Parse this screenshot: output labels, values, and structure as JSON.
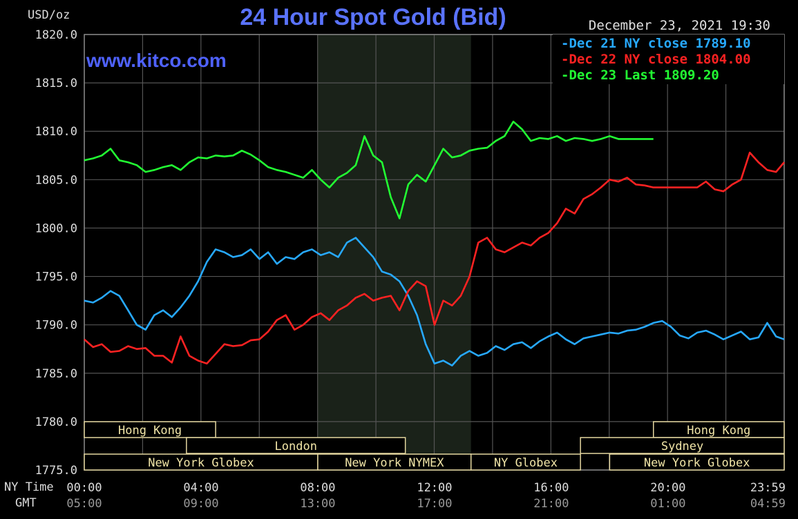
{
  "header": {
    "unit_label": "USD/oz",
    "title": "24 Hour Spot Gold (Bid)",
    "site": "www.kitco.com",
    "date": "December 23, 2021 19:30"
  },
  "legend": [
    "Dec 21 NY close 1789.10",
    "Dec 22 NY close 1804.00",
    "Dec 23 Last 1809.20"
  ],
  "x_axis": {
    "ny_time_label": "NY Time",
    "gmt_label": "GMT",
    "ny_ticks": [
      "00:00",
      "04:00",
      "08:00",
      "12:00",
      "16:00",
      "20:00",
      "23:59"
    ],
    "gmt_ticks": [
      "05:00",
      "09:00",
      "13:00",
      "17:00",
      "21:00",
      "01:00",
      "04:59"
    ]
  },
  "sessions": [
    {
      "label": "Hong Kong",
      "row": 0,
      "start": 0.0,
      "end": 4.5
    },
    {
      "label": "Hong Kong",
      "row": 0,
      "start": 19.5,
      "end": 23.98
    },
    {
      "label": "London",
      "row": 1,
      "start": 3.5,
      "end": 11.0
    },
    {
      "label": "Sydney",
      "row": 1,
      "start": 17.0,
      "end": 23.98
    },
    {
      "label": "New York Globex",
      "row": 2,
      "start": 0.0,
      "end": 8.0
    },
    {
      "label": "New York NYMEX",
      "row": 2,
      "start": 8.0,
      "end": 13.25
    },
    {
      "label": "NY Globex",
      "row": 2,
      "start": 13.25,
      "end": 17.0
    },
    {
      "label": "New York Globex",
      "row": 2,
      "start": 18.0,
      "end": 23.98
    }
  ],
  "chart_data": {
    "type": "line",
    "title": "24 Hour Spot Gold (Bid)",
    "ylabel": "USD/oz",
    "xlabel": "NY Time",
    "ylim": [
      1775.0,
      1820.0
    ],
    "xlim": [
      0,
      23.98
    ],
    "y_ticks": [
      "1775.0",
      "1780.0",
      "1785.0",
      "1790.0",
      "1795.0",
      "1800.0",
      "1805.0",
      "1810.0",
      "1815.0",
      "1820.0"
    ],
    "shaded_region": [
      8.0,
      13.25
    ],
    "grid": true,
    "legend_position": "top-right",
    "colors": {
      "Dec 21": "#27a9ff",
      "Dec 22": "#ff2222",
      "Dec 23": "#22ff33"
    },
    "series": [
      {
        "name": "Dec 21 NY close 1789.10",
        "x": [
          0.0,
          0.3,
          0.6,
          0.9,
          1.2,
          1.5,
          1.8,
          2.1,
          2.4,
          2.7,
          3.0,
          3.3,
          3.6,
          3.9,
          4.2,
          4.5,
          4.8,
          5.1,
          5.4,
          5.7,
          6.0,
          6.3,
          6.6,
          6.9,
          7.2,
          7.5,
          7.8,
          8.1,
          8.4,
          8.7,
          9.0,
          9.3,
          9.6,
          9.9,
          10.2,
          10.5,
          10.8,
          11.1,
          11.4,
          11.7,
          12.0,
          12.3,
          12.6,
          12.9,
          13.2,
          13.5,
          13.8,
          14.1,
          14.4,
          14.7,
          15.0,
          15.3,
          15.6,
          15.9,
          16.2,
          16.5,
          16.8,
          17.1,
          17.4,
          17.7,
          18.0,
          18.3,
          18.6,
          18.9,
          19.2,
          19.5,
          19.8,
          20.1,
          20.4,
          20.7,
          21.0,
          21.3,
          21.6,
          21.9,
          22.2,
          22.5,
          22.8,
          23.1,
          23.4,
          23.7,
          23.98
        ],
        "y": [
          1792.5,
          1792.3,
          1792.8,
          1793.5,
          1793.0,
          1791.5,
          1790.0,
          1789.5,
          1791.0,
          1791.5,
          1790.8,
          1791.8,
          1793.0,
          1794.5,
          1796.5,
          1797.8,
          1797.5,
          1797.0,
          1797.2,
          1797.8,
          1796.8,
          1797.5,
          1796.3,
          1797.0,
          1796.8,
          1797.5,
          1797.8,
          1797.2,
          1797.5,
          1797.0,
          1798.5,
          1799.0,
          1798.0,
          1797.0,
          1795.5,
          1795.2,
          1794.5,
          1793.0,
          1791.0,
          1788.0,
          1786.0,
          1786.3,
          1785.8,
          1786.8,
          1787.3,
          1786.8,
          1787.1,
          1787.8,
          1787.4,
          1788.0,
          1788.2,
          1787.6,
          1788.3,
          1788.8,
          1789.2,
          1788.5,
          1788.0,
          1788.6,
          1788.8,
          1789.0,
          1789.2,
          1789.1,
          1789.4,
          1789.5,
          1789.8,
          1790.2,
          1790.4,
          1789.8,
          1788.9,
          1788.6,
          1789.2,
          1789.4,
          1789.0,
          1788.5,
          1788.9,
          1789.3,
          1788.5,
          1788.7,
          1790.2,
          1788.8,
          1788.5
        ]
      },
      {
        "name": "Dec 22 NY close 1804.00",
        "x": [
          0.0,
          0.3,
          0.6,
          0.9,
          1.2,
          1.5,
          1.8,
          2.1,
          2.4,
          2.7,
          3.0,
          3.3,
          3.6,
          3.9,
          4.2,
          4.5,
          4.8,
          5.1,
          5.4,
          5.7,
          6.0,
          6.3,
          6.6,
          6.9,
          7.2,
          7.5,
          7.8,
          8.1,
          8.4,
          8.7,
          9.0,
          9.3,
          9.6,
          9.9,
          10.2,
          10.5,
          10.8,
          11.1,
          11.4,
          11.7,
          12.0,
          12.3,
          12.6,
          12.9,
          13.2,
          13.5,
          13.8,
          14.1,
          14.4,
          14.7,
          15.0,
          15.3,
          15.6,
          15.9,
          16.2,
          16.5,
          16.8,
          17.1,
          17.4,
          17.7,
          18.0,
          18.3,
          18.6,
          18.9,
          19.2,
          19.5,
          19.8,
          20.1,
          20.4,
          20.7,
          21.0,
          21.3,
          21.6,
          21.9,
          22.2,
          22.5,
          22.8,
          23.1,
          23.4,
          23.7,
          23.98
        ],
        "y": [
          1788.5,
          1787.7,
          1788.0,
          1787.2,
          1787.3,
          1787.8,
          1787.5,
          1787.6,
          1786.8,
          1786.8,
          1786.1,
          1788.8,
          1786.8,
          1786.3,
          1786.0,
          1787.0,
          1788.0,
          1787.8,
          1787.9,
          1788.4,
          1788.5,
          1789.3,
          1790.5,
          1791.0,
          1789.5,
          1790.0,
          1790.8,
          1791.2,
          1790.5,
          1791.5,
          1792.0,
          1792.8,
          1793.2,
          1792.5,
          1792.8,
          1793.0,
          1791.5,
          1793.5,
          1794.5,
          1794.0,
          1790.0,
          1792.5,
          1792.0,
          1793.0,
          1795.0,
          1798.5,
          1799.0,
          1797.8,
          1797.5,
          1798.0,
          1798.5,
          1798.2,
          1799.0,
          1799.5,
          1800.5,
          1802.0,
          1801.5,
          1803.0,
          1803.5,
          1804.2,
          1805.0,
          1804.8,
          1805.2,
          1804.5,
          1804.4,
          1804.2,
          1804.2,
          1804.2,
          1804.2,
          1804.2,
          1804.2,
          1804.8,
          1804.0,
          1803.8,
          1804.5,
          1805.0,
          1807.8,
          1806.8,
          1806.0,
          1805.8,
          1806.8
        ]
      },
      {
        "name": "Dec 23 Last 1809.20",
        "x": [
          0.0,
          0.3,
          0.6,
          0.9,
          1.2,
          1.5,
          1.8,
          2.1,
          2.4,
          2.7,
          3.0,
          3.3,
          3.6,
          3.9,
          4.2,
          4.5,
          4.8,
          5.1,
          5.4,
          5.7,
          6.0,
          6.3,
          6.6,
          6.9,
          7.2,
          7.5,
          7.8,
          8.1,
          8.4,
          8.7,
          9.0,
          9.3,
          9.6,
          9.9,
          10.2,
          10.5,
          10.8,
          11.1,
          11.4,
          11.7,
          12.0,
          12.3,
          12.6,
          12.9,
          13.2,
          13.5,
          13.8,
          14.1,
          14.4,
          14.7,
          15.0,
          15.3,
          15.6,
          15.9,
          16.2,
          16.5,
          16.8,
          17.1,
          17.4,
          17.7,
          18.0,
          18.3,
          18.6,
          18.9,
          19.2,
          19.5
        ],
        "y": [
          1807.0,
          1807.2,
          1807.5,
          1808.2,
          1807.0,
          1806.8,
          1806.5,
          1805.8,
          1806.0,
          1806.3,
          1806.5,
          1806.0,
          1806.8,
          1807.3,
          1807.2,
          1807.5,
          1807.4,
          1807.5,
          1808.0,
          1807.6,
          1807.0,
          1806.3,
          1806.0,
          1805.8,
          1805.5,
          1805.2,
          1806.0,
          1805.0,
          1804.2,
          1805.2,
          1805.7,
          1806.5,
          1809.5,
          1807.5,
          1806.8,
          1803.2,
          1801.0,
          1804.5,
          1805.5,
          1804.8,
          1806.5,
          1808.2,
          1807.3,
          1807.5,
          1808.0,
          1808.2,
          1808.3,
          1809.0,
          1809.5,
          1811.0,
          1810.2,
          1809.0,
          1809.3,
          1809.2,
          1809.5,
          1809.0,
          1809.3,
          1809.2,
          1809.0,
          1809.2,
          1809.5,
          1809.2,
          1809.2,
          1809.2,
          1809.2,
          1809.2
        ]
      }
    ]
  }
}
